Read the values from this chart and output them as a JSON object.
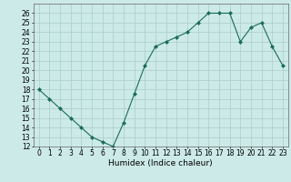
{
  "x": [
    0,
    1,
    2,
    3,
    4,
    5,
    6,
    7,
    8,
    9,
    10,
    11,
    12,
    13,
    14,
    15,
    16,
    17,
    18,
    19,
    20,
    21,
    22,
    23
  ],
  "y": [
    18,
    17,
    16,
    15,
    14,
    13,
    12.5,
    12,
    14.5,
    17.5,
    20.5,
    22.5,
    23,
    23.5,
    24,
    25,
    26,
    26,
    26,
    23,
    24.5,
    25,
    22.5,
    20.5
  ],
  "line_color": "#1a6b5e",
  "marker": "D",
  "marker_size": 2,
  "bg_color": "#cceae7",
  "grid_color": "#aaccca",
  "xlabel": "Humidex (Indice chaleur)",
  "ylabel": "",
  "xlim": [
    -0.5,
    23.5
  ],
  "ylim": [
    12,
    27
  ],
  "yticks": [
    12,
    13,
    14,
    15,
    16,
    17,
    18,
    19,
    20,
    21,
    22,
    23,
    24,
    25,
    26
  ],
  "xticks": [
    0,
    1,
    2,
    3,
    4,
    5,
    6,
    7,
    8,
    9,
    10,
    11,
    12,
    13,
    14,
    15,
    16,
    17,
    18,
    19,
    20,
    21,
    22,
    23
  ],
  "xlabel_fontsize": 6.5,
  "tick_fontsize": 5.5
}
